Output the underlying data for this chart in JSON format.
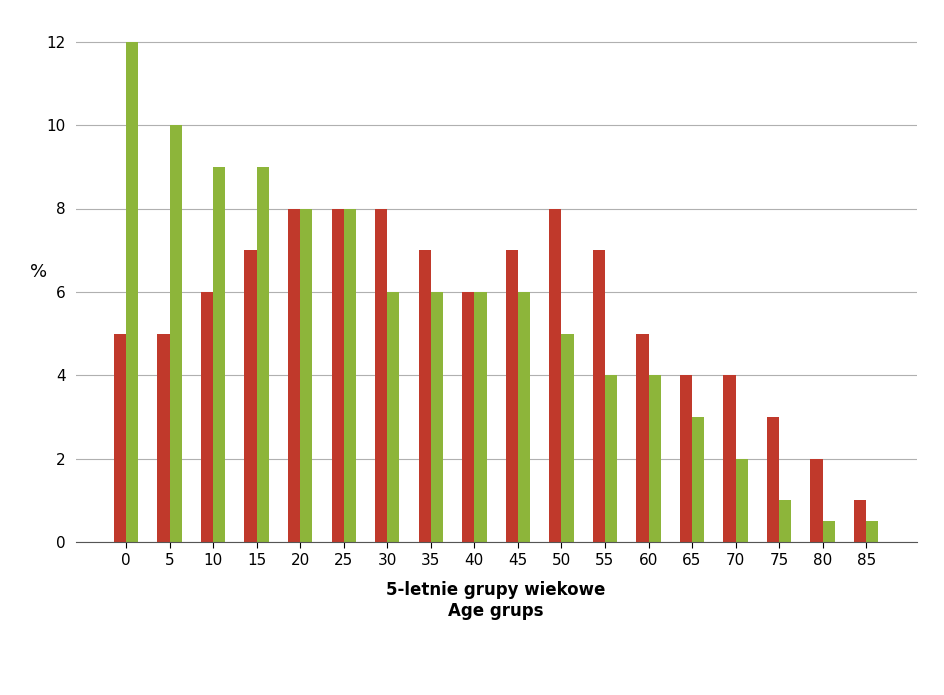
{
  "categories": [
    0,
    5,
    10,
    15,
    20,
    25,
    30,
    35,
    40,
    45,
    50,
    55,
    60,
    65,
    70,
    75,
    80,
    85
  ],
  "pomeranian": [
    5.0,
    5.0,
    6.0,
    7.0,
    8.0,
    8.0,
    8.0,
    7.0,
    6.0,
    7.0,
    8.0,
    7.0,
    5.0,
    4.0,
    4.0,
    3.0,
    2.0,
    1.0
  ],
  "world": [
    12.0,
    10.0,
    9.0,
    9.0,
    8.0,
    8.0,
    6.0,
    6.0,
    6.0,
    6.0,
    5.0,
    4.0,
    4.0,
    3.0,
    2.0,
    1.0,
    0.5,
    0.5
  ],
  "pomeranian_color": "#c0392b",
  "world_color": "#8db53a",
  "ylabel": "%",
  "xlabel_line1": "5-letnie grupy wiekowe",
  "xlabel_line2": "Age grups",
  "ylim": [
    0,
    12.5
  ],
  "yticks": [
    0,
    2,
    4,
    6,
    8,
    10,
    12
  ],
  "background_color": "#ffffff",
  "bar_width": 0.28
}
